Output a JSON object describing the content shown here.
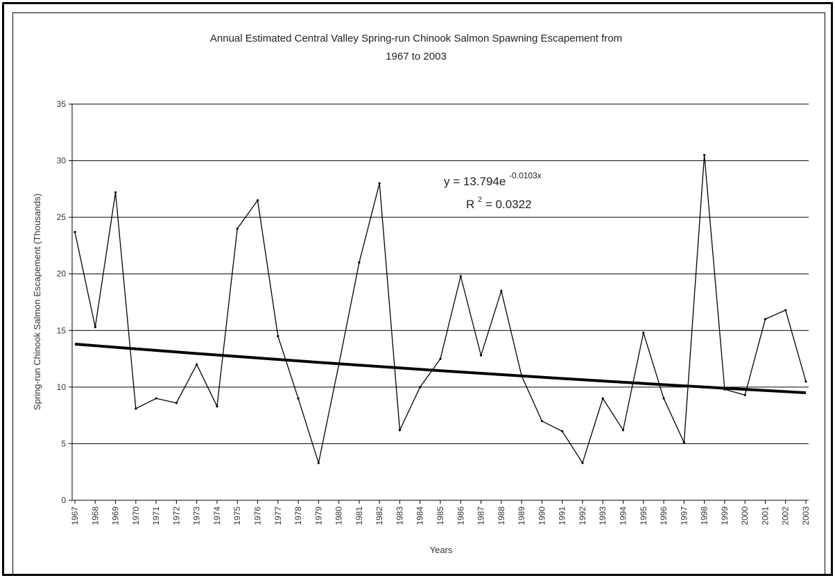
{
  "chart_data": {
    "type": "line",
    "title": "Annual Estimated Central Valley Spring-run Chinook Salmon Spawning Escapement from",
    "subtitle": "1967 to 2003",
    "xlabel": "Years",
    "ylabel": "Spring-run Chinook Salmon Escapement (Thousands)",
    "ylim": [
      0,
      35
    ],
    "yticks": [
      "0",
      "5",
      "10",
      "15",
      "20",
      "25",
      "30",
      "35"
    ],
    "grid": "horizontal",
    "categories": [
      "1967",
      "1968",
      "1969",
      "1970",
      "1971",
      "1972",
      "1973",
      "1974",
      "1975",
      "1976",
      "1977",
      "1978",
      "1979",
      "1980",
      "1981",
      "1982",
      "1983",
      "1984",
      "1985",
      "1986",
      "1987",
      "1988",
      "1989",
      "1990",
      "1991",
      "1992",
      "1993",
      "1994",
      "1995",
      "1996",
      "1997",
      "1998",
      "1999",
      "2000",
      "2001",
      "2002",
      "2003"
    ],
    "series": [
      {
        "values": [
          23.7,
          15.3,
          27.2,
          8.1,
          9.0,
          8.6,
          12.0,
          8.3,
          24.0,
          26.5,
          14.5,
          9.0,
          3.3,
          12.0,
          21.0,
          28.0,
          6.2,
          10.0,
          12.5,
          19.8,
          12.8,
          18.5,
          11.0,
          7.0,
          6.1,
          3.3,
          9.0,
          6.2,
          14.8,
          9.0,
          5.1,
          30.5,
          9.8,
          9.3,
          16.0,
          16.8,
          10.5
        ],
        "color": "#000000"
      },
      {
        "name": "trend",
        "type": "exponential",
        "values_start_end": [
          13.8,
          9.5
        ],
        "color": "#000000"
      }
    ],
    "annotations": {
      "equation": "y = 13.794e",
      "exponent": "-0.0103x",
      "r2_label": "R",
      "r2_sup": "2",
      "r2_value": " = 0.0322"
    }
  }
}
